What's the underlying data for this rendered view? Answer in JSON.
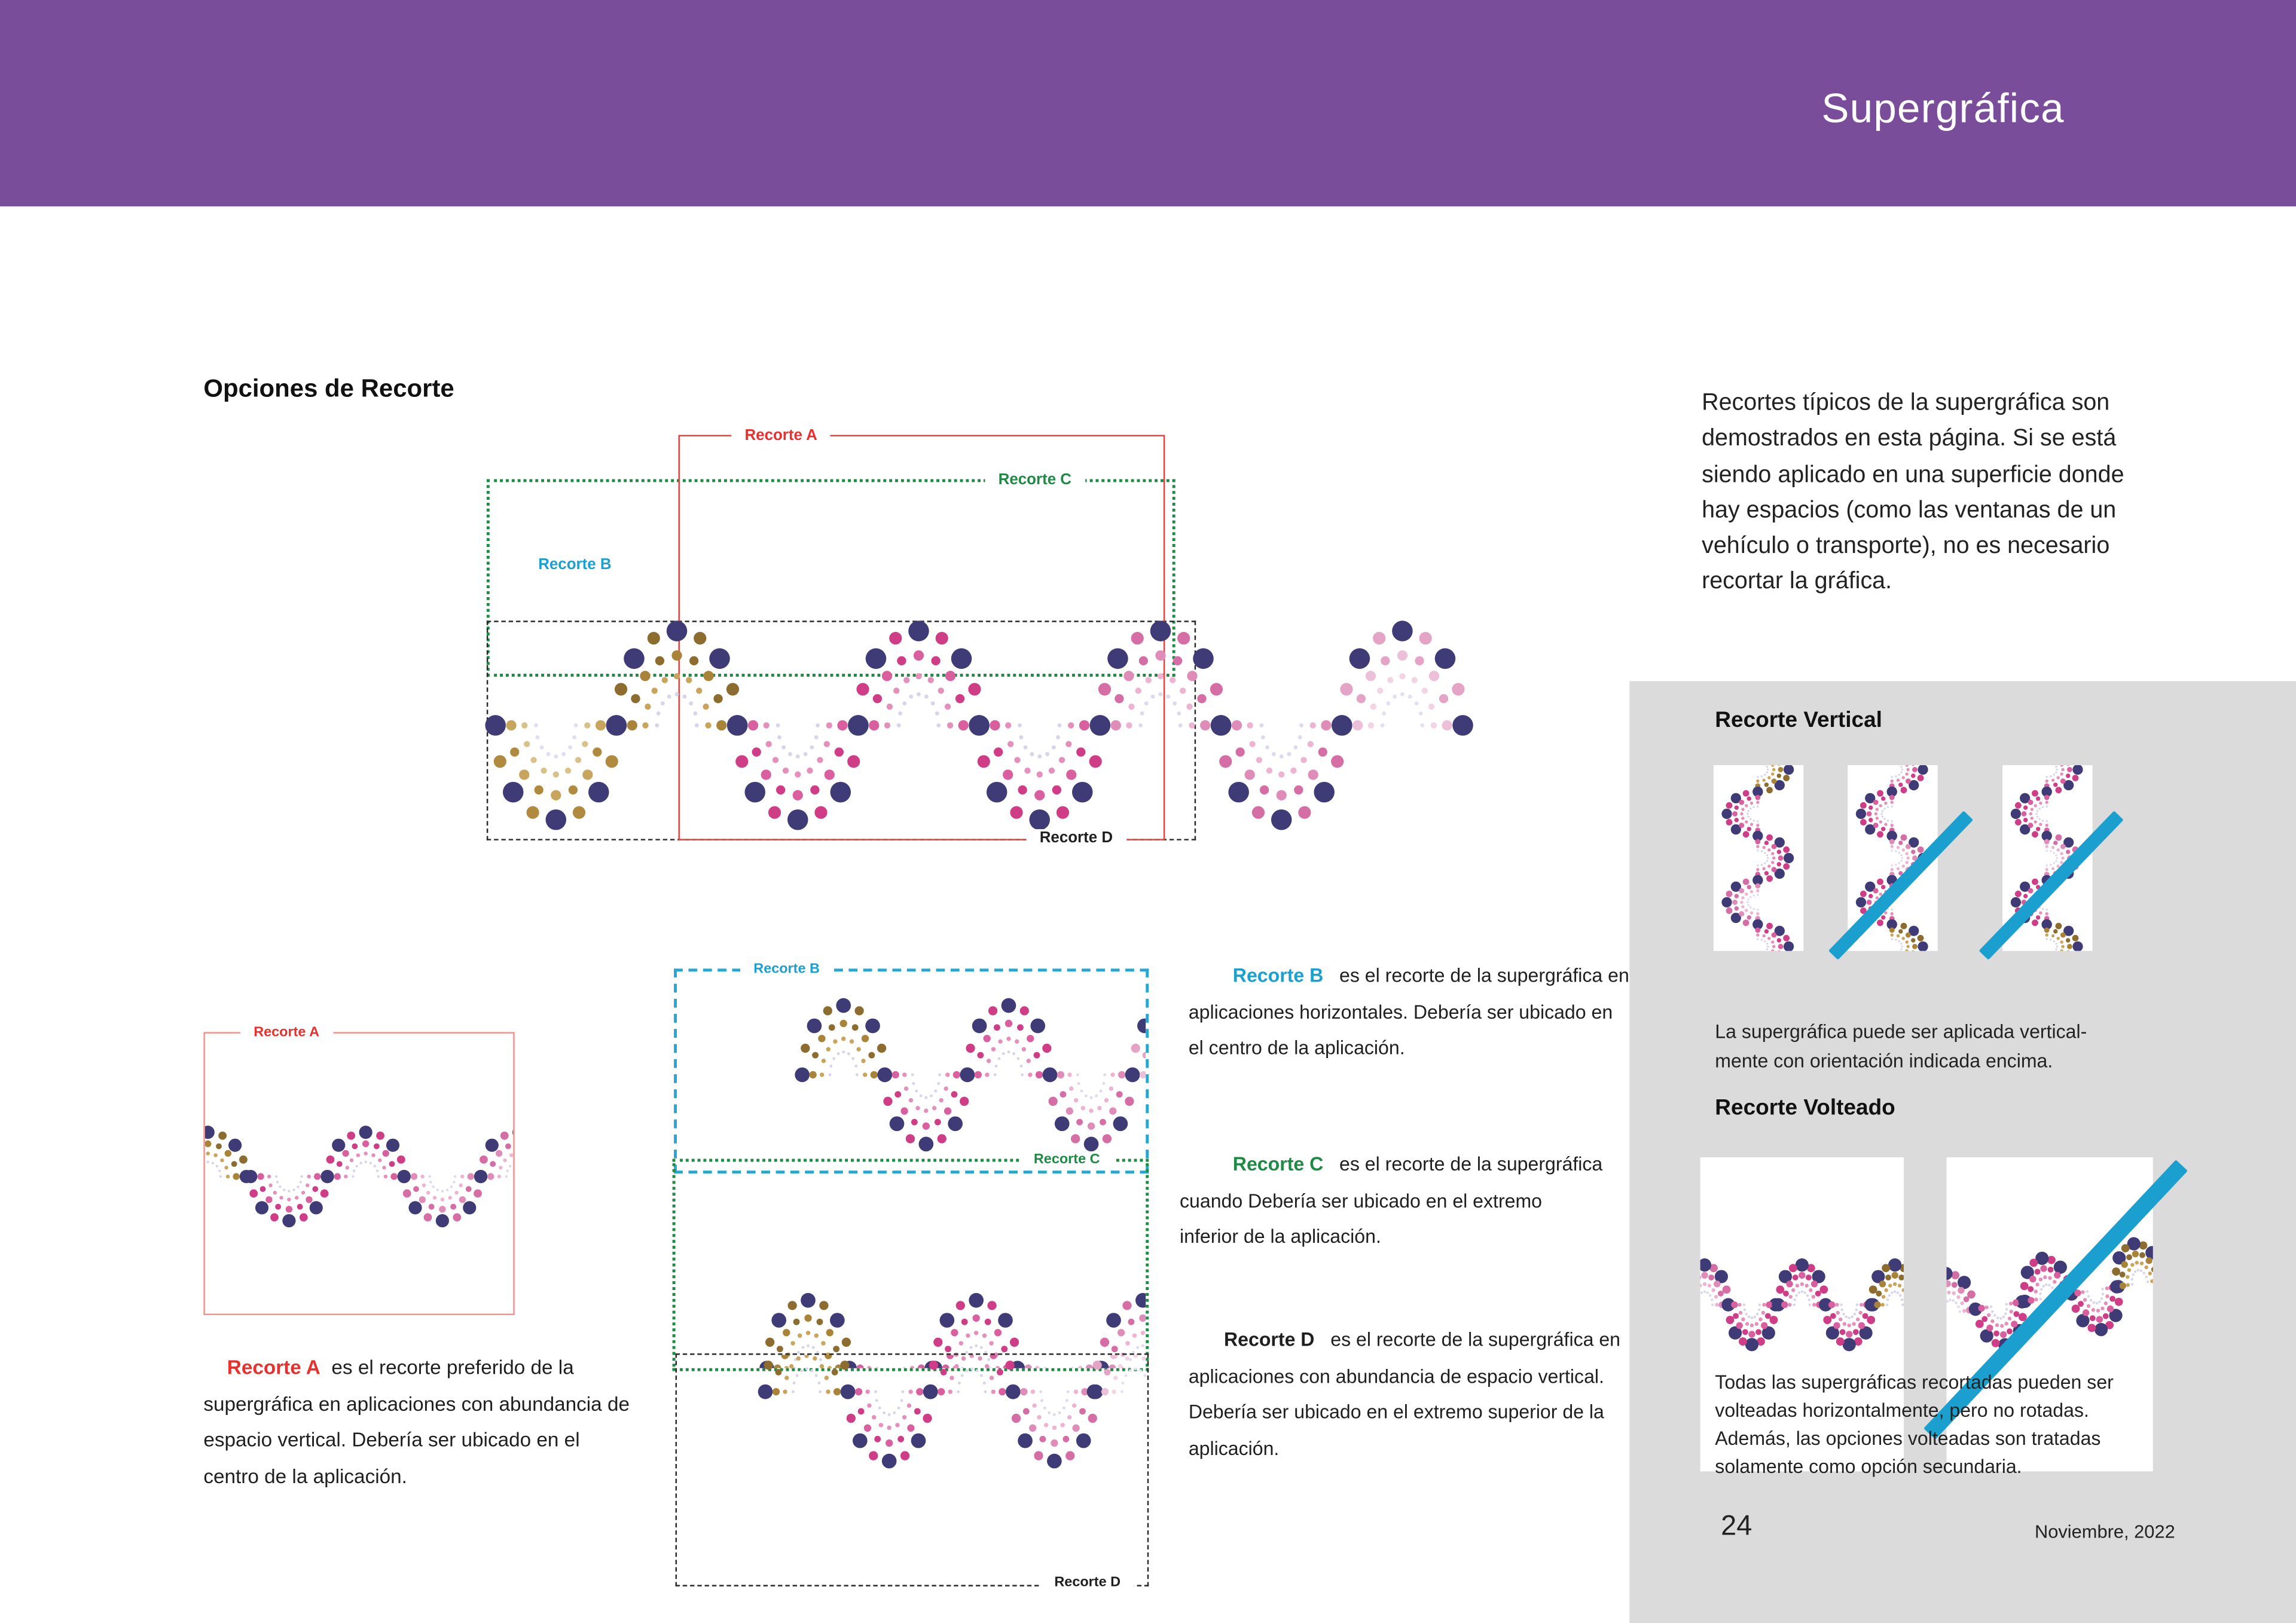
{
  "header": {
    "title": "Supergráfica",
    "bg": "#7a4d9a"
  },
  "main": {
    "section_title": "Opciones de Recorte",
    "intro_lines": [
      "Recortes típicos de la supergráfica son",
      "demostrados en esta página. Si se está",
      "siendo aplicado en una superficie donde",
      "hay espacios (como las ventanas de un",
      "vehículo o transporte), no es necesario",
      "recortar la gráfica."
    ]
  },
  "crop_labels": {
    "a": "Recorte A",
    "b": "Recorte B",
    "c": "Recorte C",
    "d": "Recorte D"
  },
  "descriptions": {
    "a": {
      "label": "Recorte A",
      "text": "es el recorte preferido de la supergráfica en aplicaciones con abundancia de espacio vertical. Debería ser ubicado en el centro de la aplicación."
    },
    "b": {
      "label": "Recorte B",
      "text": "es el recorte de la supergráfica en aplicaciones horizontales. Debería ser ubicado en el centro de la aplicación."
    },
    "c": {
      "label": "Recorte C",
      "text": "es el recorte de la supergráfica cuando Debería ser ubicado en el extremo inferior de la aplicación."
    },
    "d": {
      "label": "Recorte D",
      "text": "es el recorte de la supergráfica en aplicaciones con abundancia de espacio vertical. Debería ser ubicado en el extremo superior de la aplicación."
    }
  },
  "sidebar": {
    "bg": "#dbdbdb",
    "vertical_title": "Recorte Vertical",
    "vertical_caption_lines": [
      "La supergráfica puede ser aplicada vertical-",
      "mente con orientación indicada encima."
    ],
    "flipped_title": "Recorte Volteado",
    "flipped_caption_lines": [
      "Todas las supergráficas recortadas pueden ser",
      "volteadas horizontalmente, pero no rotadas.",
      "Además, las opciones volteadas son tratadas",
      "solamente como opción secundaria."
    ],
    "page_number": "24",
    "date": "Noviembre, 2022"
  },
  "colors": {
    "crop_a": "#e8312e",
    "crop_a_box": "#e8413c",
    "crop_a_box_light": "#f2928e",
    "crop_b": "#1ba0cf",
    "crop_c": "#1e8a44",
    "crop_d": "#1f1f1f",
    "slash": "#1b9fce",
    "navy": "#3f3b76",
    "themes": {
      "gold": {
        "dark": "#8c6d2f",
        "mid": "#a98338",
        "mid2": "#c9a45a",
        "pale": "#d9d5e8"
      },
      "goldpale": {
        "dark": "#b08a3f",
        "mid": "#c8a55c",
        "mid2": "#d9c28a",
        "pale": "#e2deef"
      },
      "pink": {
        "dark": "#cf3d87",
        "mid": "#d95f9f",
        "mid2": "#e490bb",
        "pale": "#d9d5e8"
      },
      "pinklight": {
        "dark": "#d66ea6",
        "mid": "#e08cb8",
        "mid2": "#edb3d1",
        "pale": "#dfd9ec"
      },
      "pale": {
        "dark": "#e3a4c6",
        "mid": "#ecc0d8",
        "mid2": "#f2d4e4",
        "pale": "#e5e0f0"
      }
    }
  }
}
